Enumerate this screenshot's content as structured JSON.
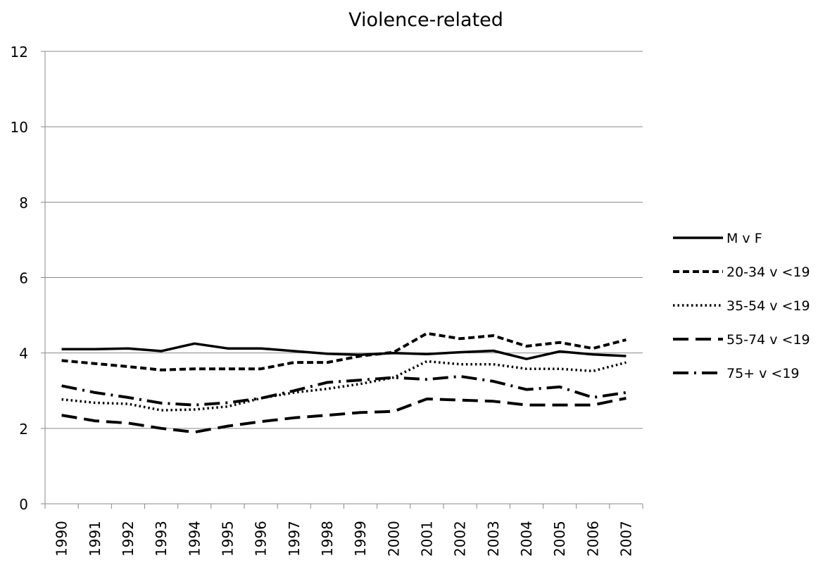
{
  "chart_data": {
    "type": "line",
    "title": "Violence-related",
    "xlabel": "",
    "ylabel": "",
    "categories": [
      "1990",
      "1991",
      "1992",
      "1993",
      "1994",
      "1995",
      "1996",
      "1997",
      "1998",
      "1999",
      "2000",
      "2001",
      "2002",
      "2003",
      "2004",
      "2005",
      "2006",
      "2007"
    ],
    "ylim": [
      0,
      12
    ],
    "yticks": [
      0,
      2,
      4,
      6,
      8,
      10,
      12
    ],
    "grid": "horizontal",
    "legend_position": "right",
    "series": [
      {
        "name": "M v F",
        "style": "solid",
        "values": [
          4.1,
          4.1,
          4.12,
          4.05,
          4.25,
          4.12,
          4.12,
          4.05,
          3.98,
          3.95,
          4.0,
          3.97,
          4.02,
          4.06,
          3.84,
          4.04,
          3.96,
          3.92
        ]
      },
      {
        "name": "20-34 v <19",
        "style": "short-dash",
        "values": [
          3.8,
          3.72,
          3.64,
          3.55,
          3.58,
          3.58,
          3.58,
          3.75,
          3.75,
          3.92,
          4.02,
          4.52,
          4.38,
          4.46,
          4.18,
          4.28,
          4.12,
          4.35
        ]
      },
      {
        "name": "35-54 v <19",
        "style": "dotted",
        "values": [
          2.77,
          2.68,
          2.65,
          2.48,
          2.5,
          2.58,
          2.8,
          2.95,
          3.05,
          3.18,
          3.35,
          3.78,
          3.7,
          3.7,
          3.58,
          3.58,
          3.52,
          3.75
        ]
      },
      {
        "name": "55-74 v <19",
        "style": "long-dash",
        "values": [
          2.35,
          2.2,
          2.14,
          2.0,
          1.9,
          2.06,
          2.18,
          2.28,
          2.35,
          2.42,
          2.45,
          2.78,
          2.75,
          2.72,
          2.62,
          2.62,
          2.62,
          2.8
        ]
      },
      {
        "name": "75+ v <19",
        "style": "dash-dot",
        "values": [
          3.13,
          2.95,
          2.82,
          2.67,
          2.62,
          2.68,
          2.8,
          3.0,
          3.22,
          3.28,
          3.35,
          3.3,
          3.38,
          3.25,
          3.03,
          3.1,
          2.82,
          2.95
        ]
      }
    ]
  }
}
